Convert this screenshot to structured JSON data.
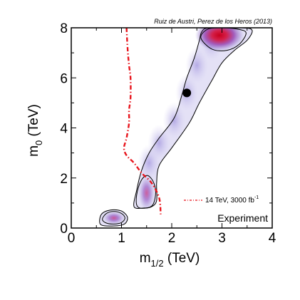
{
  "chart_data": {
    "type": "heatmap",
    "title": "",
    "credit": "Ruiz de Austri, Perez de los Heros (2013)",
    "xlabel": {
      "main": "m",
      "sub": "1/2",
      "unit": " (TeV)"
    },
    "ylabel": {
      "main": "m",
      "sub": "0",
      "unit": " (TeV)"
    },
    "xlim": [
      0,
      4
    ],
    "ylim": [
      0,
      8
    ],
    "xticks": [
      "0",
      "1",
      "2",
      "3",
      "4"
    ],
    "yticks": [
      "0",
      "2",
      "4",
      "6",
      "8"
    ],
    "panel_label": "Experiment",
    "legend": {
      "placement": "bottom-right",
      "entries": [
        {
          "label": "14 TeV, 3000 fb",
          "sup": "-1",
          "style": "dash-dot",
          "color": "#e8141c"
        }
      ]
    },
    "best_fit_point": {
      "x": 2.3,
      "y": 5.4
    },
    "density_blobs": [
      {
        "name": "low-mass island",
        "x": 0.85,
        "y": 0.4,
        "peak": 0.75
      },
      {
        "name": "mid island",
        "x": 1.5,
        "y": 1.4,
        "peak": 0.7
      },
      {
        "name": "high-mass peak",
        "x": 2.95,
        "y": 7.7,
        "peak": 1.0
      }
    ],
    "contour_inner_island_low": [
      [
        0.62,
        0.35
      ],
      [
        0.7,
        0.58
      ],
      [
        0.85,
        0.66
      ],
      [
        1.0,
        0.58
      ],
      [
        1.07,
        0.4
      ],
      [
        1.0,
        0.22
      ],
      [
        0.85,
        0.16
      ],
      [
        0.7,
        0.2
      ]
    ],
    "contour_inner_island_mid": [
      [
        1.32,
        0.85
      ],
      [
        1.3,
        1.3
      ],
      [
        1.38,
        1.85
      ],
      [
        1.5,
        2.1
      ],
      [
        1.62,
        1.9
      ],
      [
        1.68,
        1.45
      ],
      [
        1.63,
        0.95
      ],
      [
        1.5,
        0.8
      ]
    ],
    "contour_inner_peak": [
      [
        2.58,
        7.6
      ],
      [
        2.72,
        7.95
      ],
      [
        3.0,
        8.0
      ],
      [
        3.3,
        7.95
      ],
      [
        3.48,
        7.8
      ],
      [
        3.35,
        7.35
      ],
      [
        3.1,
        7.1
      ],
      [
        2.8,
        7.15
      ]
    ],
    "contour_outer_main": [
      [
        1.25,
        0.85
      ],
      [
        1.3,
        1.5
      ],
      [
        1.4,
        2.3
      ],
      [
        1.55,
        3.0
      ],
      [
        1.75,
        3.6
      ],
      [
        2.05,
        4.4
      ],
      [
        2.2,
        5.3
      ],
      [
        2.3,
        6.0
      ],
      [
        2.45,
        6.8
      ],
      [
        2.55,
        7.5
      ],
      [
        2.6,
        7.85
      ],
      [
        2.75,
        8.0
      ],
      [
        3.4,
        8.0
      ],
      [
        3.6,
        7.9
      ],
      [
        3.5,
        7.5
      ],
      [
        3.25,
        7.1
      ],
      [
        3.0,
        6.6
      ],
      [
        2.8,
        5.9
      ],
      [
        2.55,
        5.0
      ],
      [
        2.35,
        4.2
      ],
      [
        2.0,
        3.2
      ],
      [
        1.75,
        2.5
      ],
      [
        1.7,
        1.8
      ],
      [
        1.7,
        1.1
      ],
      [
        1.6,
        0.85
      ],
      [
        1.45,
        0.8
      ]
    ],
    "contour_outer_low": [
      [
        0.58,
        0.15
      ],
      [
        0.6,
        0.55
      ],
      [
        0.78,
        0.72
      ],
      [
        1.0,
        0.68
      ],
      [
        1.12,
        0.42
      ],
      [
        1.05,
        0.15
      ],
      [
        0.8,
        0.08
      ]
    ],
    "sensitivity_curve": [
      [
        1.1,
        8.0
      ],
      [
        1.12,
        7.2
      ],
      [
        1.15,
        6.5
      ],
      [
        1.18,
        6.0
      ],
      [
        1.18,
        5.2
      ],
      [
        1.15,
        4.7
      ],
      [
        1.15,
        4.2
      ],
      [
        1.1,
        3.6
      ],
      [
        1.05,
        3.2
      ],
      [
        1.1,
        2.9
      ],
      [
        1.25,
        2.6
      ],
      [
        1.4,
        2.2
      ],
      [
        1.6,
        1.8
      ],
      [
        1.75,
        1.2
      ],
      [
        1.78,
        0.55
      ]
    ]
  }
}
